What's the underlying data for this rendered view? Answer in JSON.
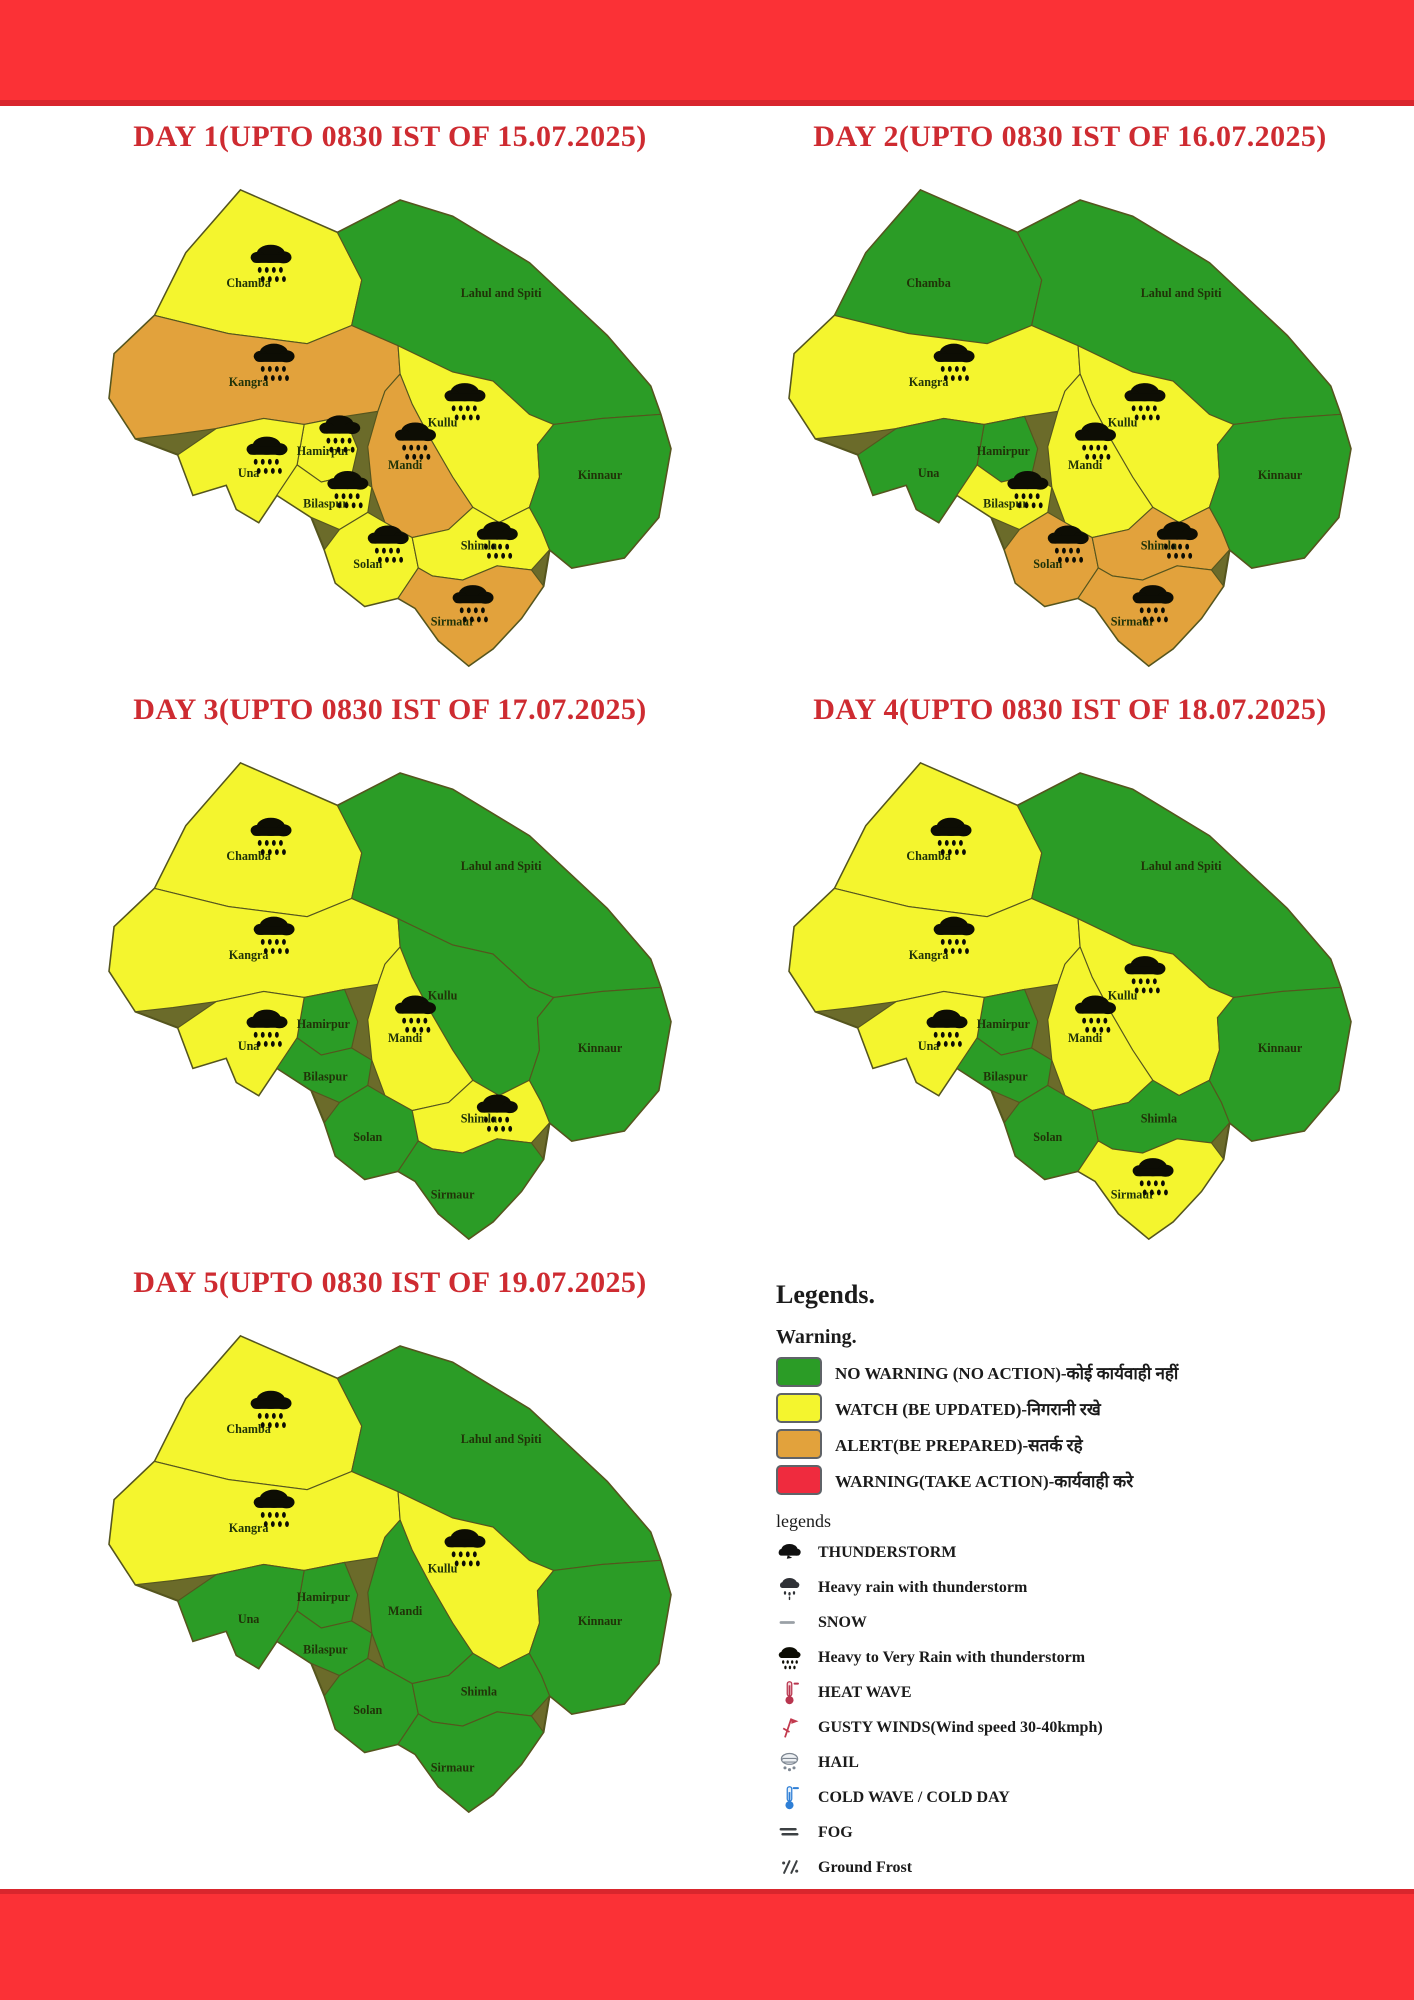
{
  "page": {
    "top_bar_color": "#fb3136",
    "bottom_bar_color": "#fb3136",
    "title_color": "#ce2b31"
  },
  "status_colors": {
    "no_warning": "#2b9c26",
    "watch": "#f4f52e",
    "alert": "#e2a23c",
    "warning": "#ef2b3e"
  },
  "districts": [
    {
      "id": "chamba",
      "label": "Chamba"
    },
    {
      "id": "lahul",
      "label": "Lahul and Spiti"
    },
    {
      "id": "kangra",
      "label": "Kangra"
    },
    {
      "id": "kullu",
      "label": "Kullu"
    },
    {
      "id": "hamirpur",
      "label": "Hamirpur"
    },
    {
      "id": "una",
      "label": "Una"
    },
    {
      "id": "mandi",
      "label": "Mandi"
    },
    {
      "id": "bilaspur",
      "label": "Bilaspur"
    },
    {
      "id": "solan",
      "label": "Solan"
    },
    {
      "id": "shimla",
      "label": "Shimla"
    },
    {
      "id": "sirmaur",
      "label": "Sirmaur"
    },
    {
      "id": "kinnaur",
      "label": "Kinnaur"
    }
  ],
  "days": [
    {
      "title": "DAY 1(UPTO 0830 IST OF 15.07.2025)",
      "status": {
        "chamba": "watch",
        "lahul": "no_warning",
        "kangra": "alert",
        "kullu": "watch",
        "hamirpur": "watch",
        "una": "watch",
        "mandi": "alert",
        "bilaspur": "watch",
        "solan": "watch",
        "shimla": "watch",
        "sirmaur": "alert",
        "kinnaur": "no_warning"
      },
      "rain": [
        "chamba",
        "kangra",
        "kullu",
        "hamirpur",
        "una",
        "mandi",
        "bilaspur",
        "solan",
        "shimla",
        "sirmaur"
      ]
    },
    {
      "title": "DAY 2(UPTO 0830 IST OF 16.07.2025)",
      "status": {
        "chamba": "no_warning",
        "lahul": "no_warning",
        "kangra": "watch",
        "kullu": "watch",
        "hamirpur": "no_warning",
        "una": "no_warning",
        "mandi": "watch",
        "bilaspur": "watch",
        "solan": "alert",
        "shimla": "alert",
        "sirmaur": "alert",
        "kinnaur": "no_warning"
      },
      "rain": [
        "kangra",
        "kullu",
        "mandi",
        "bilaspur",
        "solan",
        "shimla",
        "sirmaur"
      ]
    },
    {
      "title": "DAY 3(UPTO 0830 IST OF 17.07.2025)",
      "status": {
        "chamba": "watch",
        "lahul": "no_warning",
        "kangra": "watch",
        "kullu": "no_warning",
        "hamirpur": "no_warning",
        "una": "watch",
        "mandi": "watch",
        "bilaspur": "no_warning",
        "solan": "no_warning",
        "shimla": "watch",
        "sirmaur": "no_warning",
        "kinnaur": "no_warning"
      },
      "rain": [
        "chamba",
        "kangra",
        "una",
        "mandi",
        "shimla"
      ]
    },
    {
      "title": "DAY 4(UPTO 0830 IST OF 18.07.2025)",
      "status": {
        "chamba": "watch",
        "lahul": "no_warning",
        "kangra": "watch",
        "kullu": "watch",
        "hamirpur": "no_warning",
        "una": "watch",
        "mandi": "watch",
        "bilaspur": "no_warning",
        "solan": "no_warning",
        "shimla": "no_warning",
        "sirmaur": "watch",
        "kinnaur": "no_warning"
      },
      "rain": [
        "chamba",
        "kangra",
        "kullu",
        "una",
        "mandi",
        "sirmaur"
      ]
    },
    {
      "title": "DAY 5(UPTO 0830 IST OF 19.07.2025)",
      "status": {
        "chamba": "watch",
        "lahul": "no_warning",
        "kangra": "watch",
        "kullu": "watch",
        "hamirpur": "no_warning",
        "una": "no_warning",
        "mandi": "no_warning",
        "bilaspur": "no_warning",
        "solan": "no_warning",
        "shimla": "no_warning",
        "sirmaur": "no_warning",
        "kinnaur": "no_warning"
      },
      "rain": [
        "chamba",
        "kangra",
        "kullu"
      ]
    }
  ],
  "legend": {
    "title": "Legends.",
    "warning_heading": "Warning.",
    "warning_items": [
      {
        "status": "no_warning",
        "color": "#2b9c26",
        "label": "NO WARNING (NO ACTION)-कोई कार्यवाही नहीं"
      },
      {
        "status": "watch",
        "color": "#f4f52e",
        "label": "WATCH (BE UPDATED)-निगरानी रखे"
      },
      {
        "status": "alert",
        "color": "#e2a23c",
        "label": "ALERT(BE PREPARED)-सतर्क रहे"
      },
      {
        "status": "warning",
        "color": "#ef2b3e",
        "label": "WARNING(TAKE ACTION)-कार्यवाही करे"
      }
    ],
    "symbols_heading": "legends",
    "symbol_items": [
      {
        "icon": "thunderstorm-icon",
        "label": "THUNDERSTORM"
      },
      {
        "icon": "heavy-rain-with-thunderstorm-icon",
        "label": "Heavy rain with thunderstorm"
      },
      {
        "icon": "snow-icon",
        "label": "SNOW"
      },
      {
        "icon": "heavy-to-very-rain-with-thunderstorm-icon",
        "label": "Heavy to Very Rain with thunderstorm"
      },
      {
        "icon": "heat-wave-icon",
        "label": "HEAT WAVE"
      },
      {
        "icon": "gusty-winds-icon",
        "label": "GUSTY WINDS(Wind speed 30-40kmph)"
      },
      {
        "icon": "hail-icon",
        "label": "HAIL"
      },
      {
        "icon": "cold-wave-icon",
        "label": "COLD WAVE / COLD DAY"
      },
      {
        "icon": "fog-icon",
        "label": "FOG"
      },
      {
        "icon": "ground-frost-icon",
        "label": "Ground Frost"
      }
    ]
  }
}
